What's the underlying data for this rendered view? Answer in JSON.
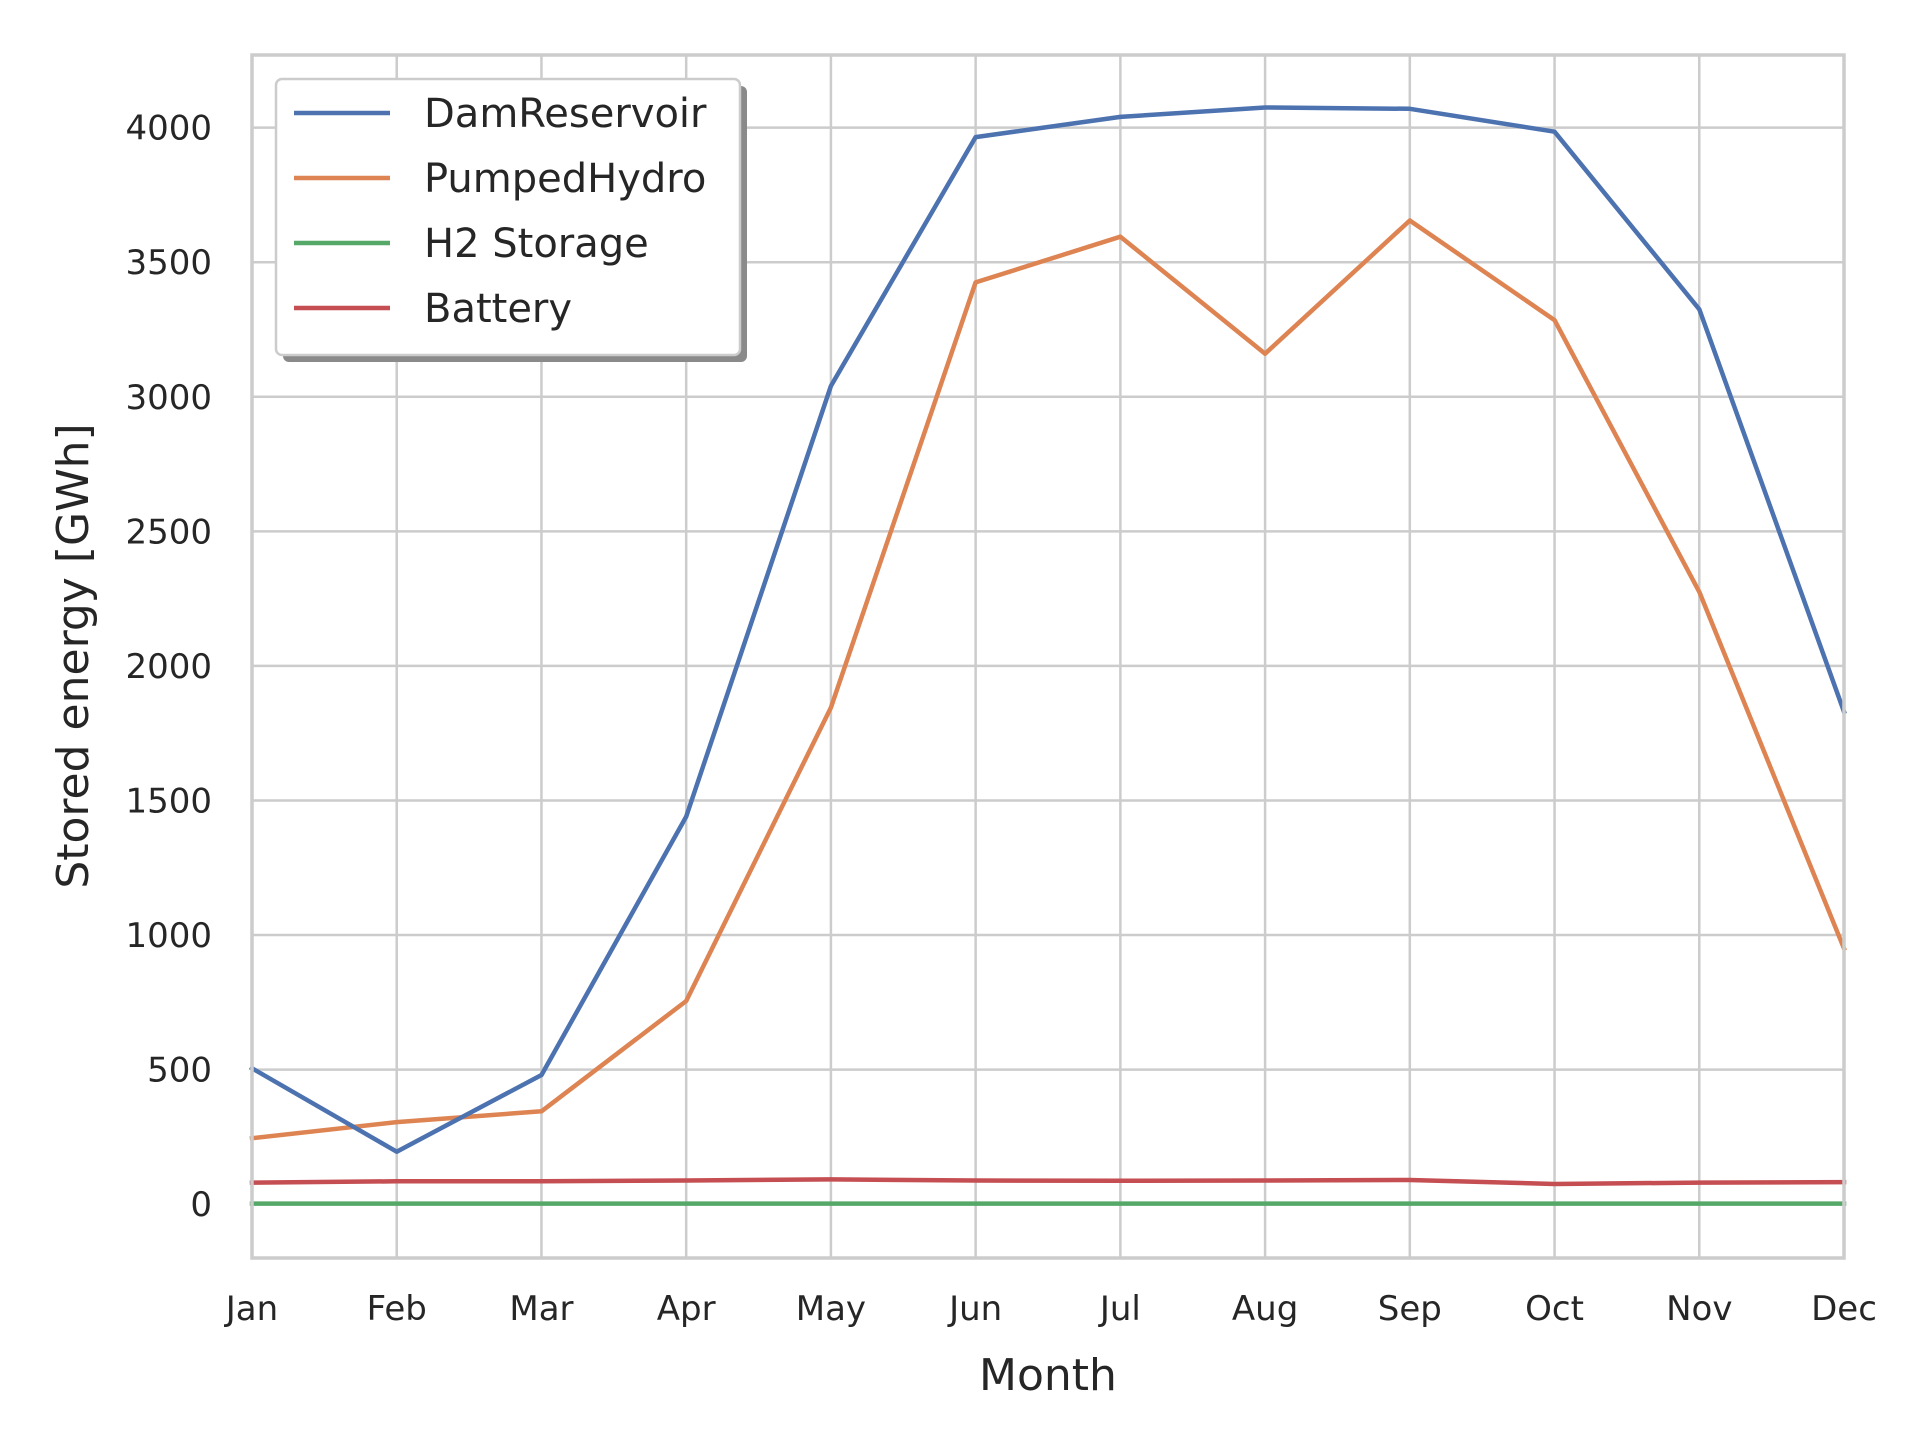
{
  "chart_data": {
    "type": "line",
    "title": "",
    "xlabel": "Month",
    "ylabel": "Stored energy [GWh]",
    "categories": [
      "Jan",
      "Feb",
      "Mar",
      "Apr",
      "May",
      "Jun",
      "Jul",
      "Aug",
      "Sep",
      "Oct",
      "Nov",
      "Dec"
    ],
    "ylim": [
      -200,
      4270
    ],
    "yticks": [
      0,
      500,
      1000,
      1500,
      2000,
      2500,
      3000,
      3500,
      4000
    ],
    "grid": true,
    "legend_position": "top-left",
    "series": [
      {
        "name": "DamReservoir",
        "color": "#4c72b0",
        "values": [
          505,
          195,
          480,
          1440,
          3040,
          3965,
          4040,
          4075,
          4070,
          3985,
          3325,
          1830
        ]
      },
      {
        "name": "PumpedHydro",
        "color": "#dd8452",
        "values": [
          245,
          305,
          345,
          755,
          1845,
          3425,
          3595,
          3160,
          3655,
          3285,
          2275,
          950
        ]
      },
      {
        "name": "H2 Storage",
        "color": "#55a868",
        "values": [
          2,
          2,
          2,
          2,
          2,
          2,
          2,
          2,
          2,
          2,
          2,
          2
        ]
      },
      {
        "name": "Battery",
        "color": "#c44e52",
        "values": [
          80,
          85,
          85,
          88,
          92,
          88,
          87,
          88,
          90,
          75,
          80,
          82
        ]
      }
    ]
  }
}
